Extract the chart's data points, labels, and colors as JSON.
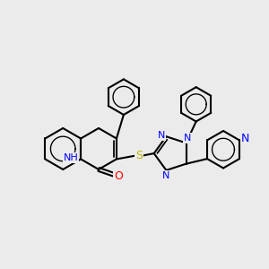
{
  "bg_color": "#ebebeb",
  "bond_color": "#000000",
  "bond_width": 1.5,
  "n_color": "#0000ff",
  "o_color": "#ff0000",
  "s_color": "#b8b800",
  "h_color": "#008888",
  "figsize": [
    3.0,
    3.0
  ],
  "dpi": 100,
  "xlim": [
    -4.2,
    5.2
  ],
  "ylim": [
    -3.8,
    4.2
  ]
}
